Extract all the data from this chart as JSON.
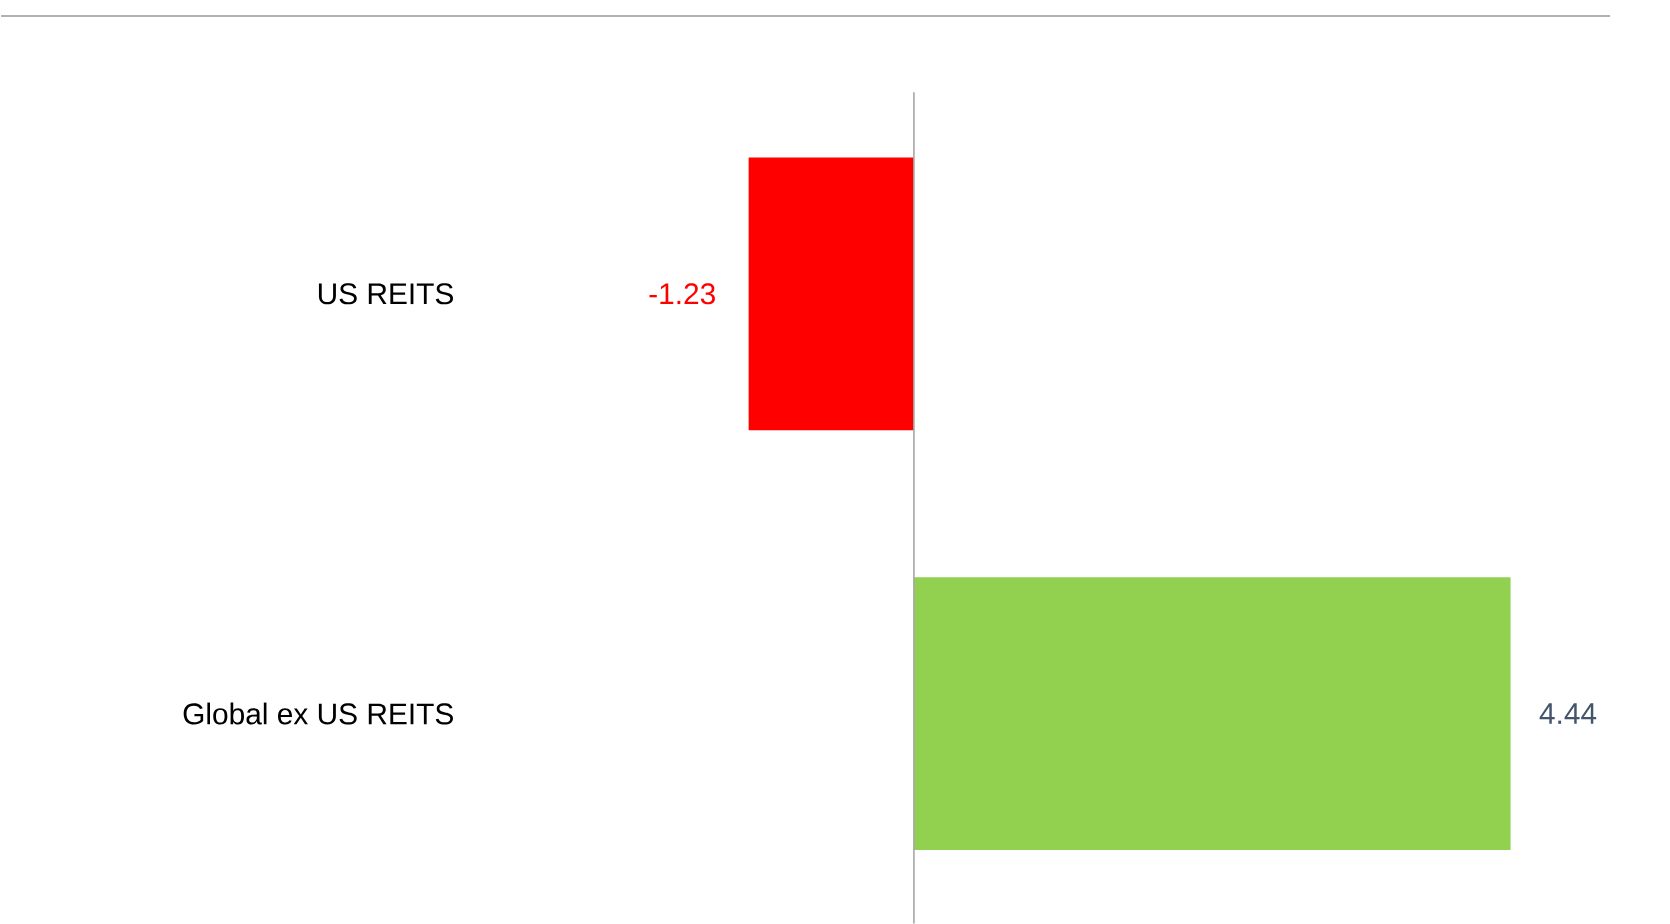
{
  "chart_data": {
    "type": "bar",
    "orientation": "horizontal",
    "categories": [
      "US REITS",
      "Global ex US REITS"
    ],
    "values": [
      -1.23,
      4.44
    ],
    "colors": [
      "#ff0000",
      "#92d050"
    ],
    "data_labels": true
  }
}
